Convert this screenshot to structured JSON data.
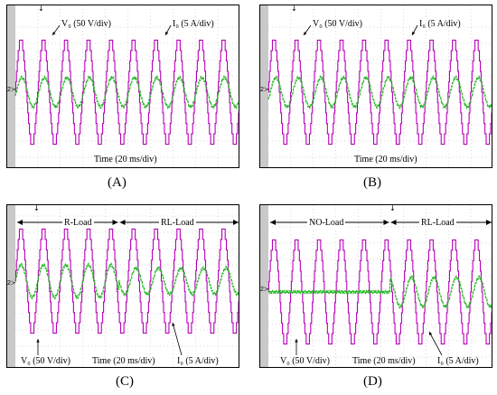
{
  "colors": {
    "voltage": "#b800b8",
    "current": "#22b822",
    "grid": "#b4b4b4",
    "frame": "#000000",
    "strip": "#c9c9c9"
  },
  "icons": {
    "trigger": "trigger-marker-icon",
    "ground": "channel-ground-marker-icon",
    "arrow": "arrow-icon"
  },
  "channel_marker": "2≻",
  "trigger_glyph": "↓",
  "panels": [
    {
      "caption": "(A)",
      "time_label": "Time (20 ms/div)",
      "voltage_label": "V₀ (50 V/div)",
      "current_label": "I₀ (5 A/div)"
    },
    {
      "caption": "(B)",
      "time_label": "Time (20 ms/div)",
      "voltage_label": "V₀ (50 V/div)",
      "current_label": "I₀ (5 A/div)"
    },
    {
      "caption": "(C)",
      "time_label": "Time (20 ms/div)",
      "voltage_label": "V₀ (50 V/div)",
      "current_label": "I₀ (5 A/div)",
      "left_segment": "R-Load",
      "right_segment": "RL-Load"
    },
    {
      "caption": "(D)",
      "time_label": "Time (20 ms/div)",
      "voltage_label": "V₀ (50 V/div)",
      "current_label": "I₀ (5 A/div)",
      "left_segment": "NO-Load",
      "right_segment": "RL-Load"
    }
  ],
  "chart_data": [
    {
      "type": "line",
      "panel": "(A)",
      "x_unit": "ms",
      "x_range": [
        0,
        200
      ],
      "series": [
        {
          "name": "V₀",
          "waveform": "multilevel staircase",
          "frequency_hz": 50,
          "amplitude_div": 3.2,
          "levels": 5
        },
        {
          "name": "I₀",
          "waveform": "sinusoid",
          "frequency_hz": 50,
          "amplitude_div": 0.9,
          "phase_lag_deg": 15
        }
      ]
    },
    {
      "type": "line",
      "panel": "(B)",
      "x_unit": "ms",
      "x_range": [
        0,
        200
      ],
      "series": [
        {
          "name": "V₀",
          "waveform": "multilevel staircase",
          "frequency_hz": 50,
          "amplitude_div": 3.2,
          "levels": 5
        },
        {
          "name": "I₀",
          "waveform": "sinusoid",
          "frequency_hz": 50,
          "amplitude_div": 0.9,
          "phase_lag_deg": 30
        }
      ]
    },
    {
      "type": "line",
      "panel": "(C)",
      "x_unit": "ms",
      "x_range": [
        0,
        200
      ],
      "series": [
        {
          "name": "V₀",
          "waveform": "multilevel staircase",
          "frequency_hz": 50,
          "amplitude_div": 3.2,
          "levels": 5
        },
        {
          "name": "I₀",
          "waveform": "sinusoid",
          "frequency_hz": 50,
          "segments": [
            {
              "label": "R-Load",
              "x_range": [
                0,
                92
              ],
              "amplitude_div": 1.0,
              "phase_lag_deg": 0
            },
            {
              "label": "RL-Load",
              "x_range": [
                92,
                200
              ],
              "amplitude_div": 0.8,
              "phase_lag_deg": 40
            }
          ]
        }
      ]
    },
    {
      "type": "line",
      "panel": "(D)",
      "x_unit": "ms",
      "x_range": [
        0,
        200
      ],
      "series": [
        {
          "name": "V₀",
          "waveform": "multilevel staircase",
          "frequency_hz": 50,
          "amplitude_div": 3.2,
          "levels": 5
        },
        {
          "name": "I₀",
          "waveform": "sinusoid",
          "frequency_hz": 50,
          "segments": [
            {
              "label": "NO-Load",
              "x_range": [
                0,
                108
              ],
              "amplitude_div": 0.0,
              "phase_lag_deg": 0
            },
            {
              "label": "RL-Load",
              "x_range": [
                108,
                200
              ],
              "amplitude_div": 0.9,
              "phase_lag_deg": 40
            }
          ]
        }
      ]
    }
  ]
}
